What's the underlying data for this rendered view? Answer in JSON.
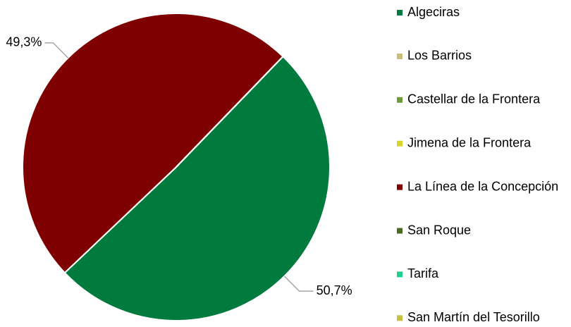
{
  "chart_data": {
    "type": "pie",
    "categories": [
      "Algeciras",
      "Los Barrios",
      "Castellar de la Frontera",
      "Jimena de la Frontera",
      "La Línea de la Concepción",
      "San Roque",
      "Tarifa",
      "San Martín del Tesorillo"
    ],
    "values": [
      50.7,
      0,
      0,
      0,
      49.3,
      0,
      0,
      0
    ],
    "value_labels": [
      "50,7%",
      null,
      null,
      null,
      "49,3%",
      null,
      null,
      null
    ],
    "colors": [
      "#007a3d",
      "#c9bd7b",
      "#6e9a3a",
      "#d4d42a",
      "#7f0000",
      "#4a6b22",
      "#1ecf8e",
      "#c8c040"
    ],
    "legend": "right"
  }
}
